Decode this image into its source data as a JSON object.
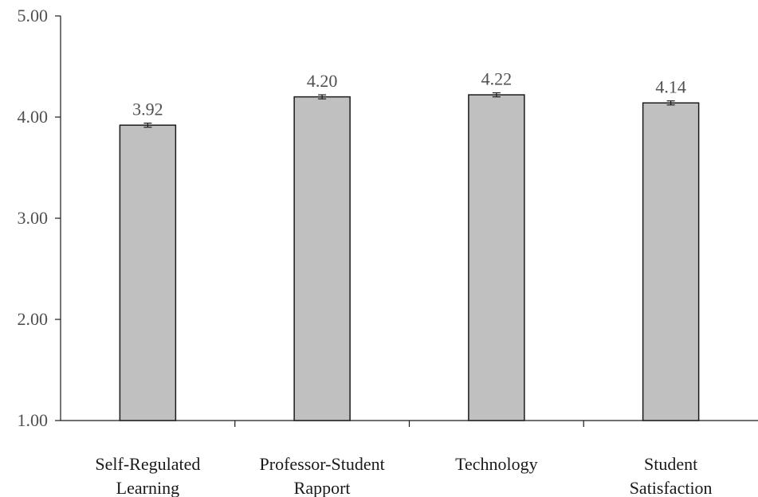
{
  "chart_data": {
    "type": "bar",
    "categories": [
      [
        "Self-Regulated",
        "Learning"
      ],
      [
        "Professor-Student",
        "Rapport"
      ],
      [
        "Technology"
      ],
      [
        "Student",
        "Satisfaction"
      ]
    ],
    "values": [
      3.92,
      4.2,
      4.22,
      4.14
    ],
    "value_labels": [
      "3.92",
      "4.20",
      "4.22",
      "4.14"
    ],
    "error": [
      0.02,
      0.02,
      0.02,
      0.02
    ],
    "ylim": [
      1.0,
      5.0
    ],
    "yticks": [
      1.0,
      2.0,
      3.0,
      4.0,
      5.0
    ],
    "ytick_labels": [
      "1.00",
      "2.00",
      "3.00",
      "4.00",
      "5.00"
    ],
    "title": "",
    "xlabel": "",
    "ylabel": "",
    "grid": false,
    "bar_color": "#c0c0c0",
    "bar_edge_color": "#1a1a1a"
  }
}
